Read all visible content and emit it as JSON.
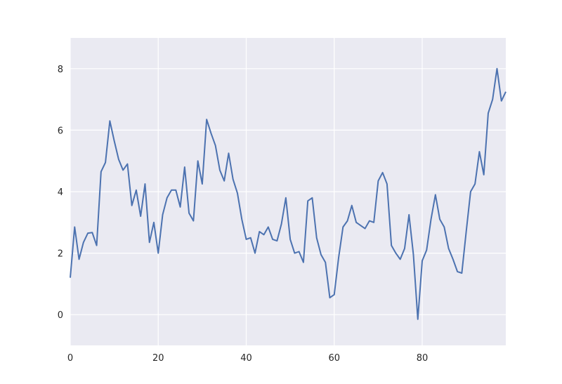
{
  "chart_data": {
    "type": "line",
    "title": "",
    "xlabel": "",
    "ylabel": "",
    "xlim": [
      0,
      99
    ],
    "ylim": [
      -1,
      9
    ],
    "xticks": [
      0,
      20,
      40,
      60,
      80
    ],
    "yticks": [
      0,
      2,
      4,
      6,
      8
    ],
    "grid": true,
    "colors": {
      "background": "#eaeaf2",
      "grid": "#ffffff",
      "line": "#4c72b0",
      "text": "#262626"
    },
    "x": [
      0,
      1,
      2,
      3,
      4,
      5,
      6,
      7,
      8,
      9,
      10,
      11,
      12,
      13,
      14,
      15,
      16,
      17,
      18,
      19,
      20,
      21,
      22,
      23,
      24,
      25,
      26,
      27,
      28,
      29,
      30,
      31,
      32,
      33,
      34,
      35,
      36,
      37,
      38,
      39,
      40,
      41,
      42,
      43,
      44,
      45,
      46,
      47,
      48,
      49,
      50,
      51,
      52,
      53,
      54,
      55,
      56,
      57,
      58,
      59,
      60,
      61,
      62,
      63,
      64,
      65,
      66,
      67,
      68,
      69,
      70,
      71,
      72,
      73,
      74,
      75,
      76,
      77,
      78,
      79,
      80,
      81,
      82,
      83,
      84,
      85,
      86,
      87,
      88,
      89,
      90,
      91,
      92,
      93,
      94,
      95,
      96,
      97,
      98,
      99
    ],
    "series": [
      {
        "values": [
          1.2,
          2.85,
          1.8,
          2.35,
          2.65,
          2.67,
          2.25,
          4.65,
          4.95,
          6.3,
          5.65,
          5.05,
          4.7,
          4.9,
          3.55,
          4.05,
          3.2,
          4.25,
          2.35,
          3.0,
          2.0,
          3.25,
          3.8,
          4.05,
          4.05,
          3.5,
          4.8,
          3.3,
          3.05,
          5.0,
          4.25,
          6.35,
          5.9,
          5.5,
          4.7,
          4.35,
          5.25,
          4.4,
          3.95,
          3.1,
          2.45,
          2.5,
          2.0,
          2.7,
          2.6,
          2.85,
          2.45,
          2.4,
          2.95,
          3.8,
          2.45,
          2.0,
          2.05,
          1.7,
          3.7,
          3.8,
          2.5,
          1.95,
          1.7,
          0.55,
          0.65,
          1.85,
          2.85,
          3.05,
          3.55,
          3.0,
          2.9,
          2.8,
          3.05,
          3.0,
          4.35,
          4.62,
          4.25,
          2.25,
          2.0,
          1.8,
          2.15,
          3.25,
          1.95,
          -0.15,
          1.75,
          2.1,
          3.1,
          3.9,
          3.1,
          2.85,
          2.15,
          1.8,
          1.4,
          1.35,
          2.7,
          4.0,
          4.25,
          5.3,
          4.55,
          6.55,
          7.0,
          8.0,
          6.95,
          7.25
        ]
      }
    ]
  }
}
